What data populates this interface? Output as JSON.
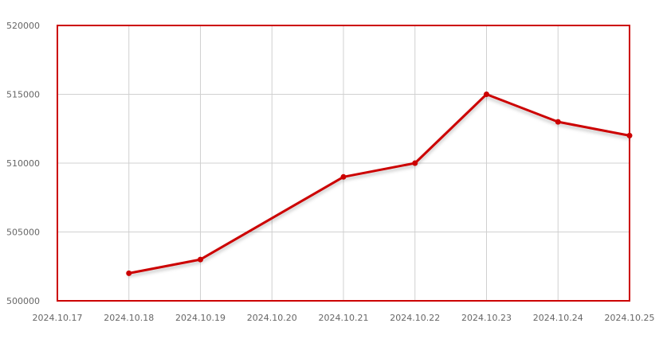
{
  "chart_data": {
    "type": "line",
    "title": "",
    "xlabel": "",
    "ylabel": "",
    "x": [
      "2024.10.17",
      "2024.10.18",
      "2024.10.19",
      "2024.10.20",
      "2024.10.21",
      "2024.10.22",
      "2024.10.23",
      "2024.10.24",
      "2024.10.25"
    ],
    "x_tick_labels": [
      "2024.10.17",
      "2024.10.18",
      "2024.10.19",
      "2024.10.20",
      "2024.10.21",
      "2024.10.22",
      "2024.10.23",
      "2024.10.24",
      "2024.10.25"
    ],
    "y_tick_labels": [
      "500000",
      "505000",
      "510000",
      "515000",
      "520000"
    ],
    "y_ticks": [
      500000,
      505000,
      510000,
      515000,
      520000
    ],
    "ylim": [
      500000,
      520000
    ],
    "series": [
      {
        "values": [
          null,
          502000,
          503000,
          null,
          509000,
          510000,
          515000,
          513000,
          512000
        ],
        "color": "#cc0000"
      }
    ],
    "grid": true,
    "legend": "none",
    "colors": {
      "line": "#cc0000",
      "frame": "#cc0000",
      "grid": "#d0d0d0",
      "tick_text": "#666666"
    }
  }
}
